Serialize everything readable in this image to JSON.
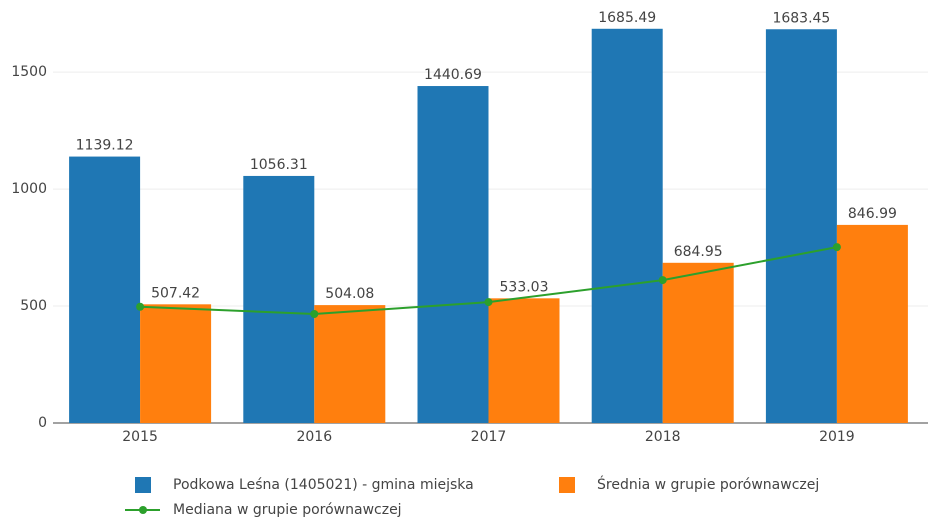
{
  "chart_data": {
    "type": "bar",
    "categories": [
      "2015",
      "2016",
      "2017",
      "2018",
      "2019"
    ],
    "series": [
      {
        "name": "Podkowa Leśna (1405021) - gmina miejska",
        "color": "#1f77b4",
        "type": "bar",
        "values": [
          1139.12,
          1056.31,
          1440.69,
          1685.49,
          1683.45
        ]
      },
      {
        "name": "Średnia w grupie porównawczej",
        "color": "#ff7f0e",
        "type": "bar",
        "values": [
          507.42,
          504.08,
          533.03,
          684.95,
          846.99
        ]
      },
      {
        "name": "Mediana w grupie porównawczej",
        "color": "#2ca02c",
        "type": "line",
        "values": [
          497,
          466,
          517,
          611,
          752
        ]
      }
    ],
    "ylim": [
      0,
      1800
    ],
    "yticks": [
      0,
      500,
      1000,
      1500
    ],
    "grid": true
  }
}
